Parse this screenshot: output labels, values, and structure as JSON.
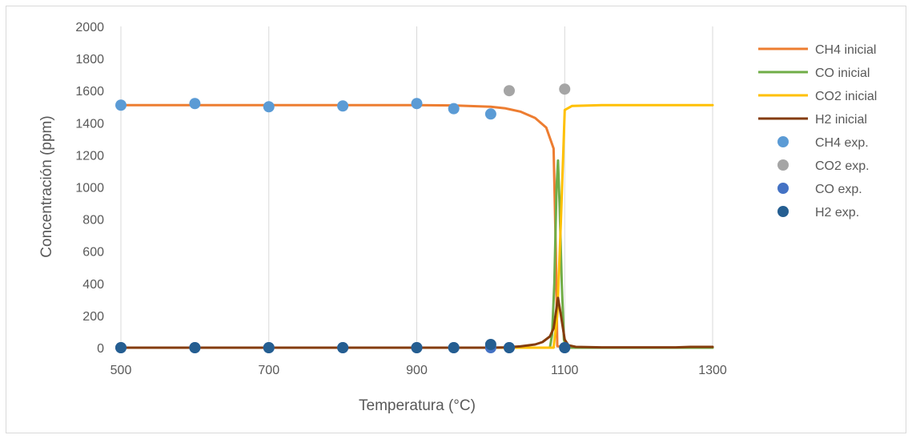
{
  "chart_data": {
    "type": "scatter",
    "xlabel": "Temperatura (°C)",
    "ylabel": "Concentración (ppm)",
    "xlim": [
      500,
      1300
    ],
    "ylim": [
      0,
      2000
    ],
    "x_ticks": [
      "500",
      "700",
      "900",
      "1100",
      "1300"
    ],
    "y_ticks": [
      "0",
      "200",
      "400",
      "600",
      "800",
      "1000",
      "1200",
      "1400",
      "1600",
      "1800",
      "2000"
    ],
    "grid": "vertical",
    "legend_position": "right",
    "series": [
      {
        "name": "CH4 inicial",
        "kind": "line",
        "color": "#ED7D31",
        "points": [
          [
            500,
            1510
          ],
          [
            700,
            1510
          ],
          [
            900,
            1510
          ],
          [
            950,
            1508
          ],
          [
            1000,
            1500
          ],
          [
            1020,
            1490
          ],
          [
            1040,
            1470
          ],
          [
            1060,
            1430
          ],
          [
            1075,
            1370
          ],
          [
            1085,
            1240
          ],
          [
            1088,
            600
          ],
          [
            1090,
            10
          ],
          [
            1100,
            0
          ],
          [
            1200,
            0
          ],
          [
            1300,
            0
          ]
        ]
      },
      {
        "name": "CO inicial",
        "kind": "line",
        "color": "#70AD47",
        "points": [
          [
            500,
            0
          ],
          [
            1080,
            0
          ],
          [
            1083,
            80
          ],
          [
            1086,
            400
          ],
          [
            1089,
            1000
          ],
          [
            1091,
            1165
          ],
          [
            1093,
            900
          ],
          [
            1096,
            400
          ],
          [
            1099,
            50
          ],
          [
            1102,
            5
          ],
          [
            1110,
            0
          ],
          [
            1300,
            0
          ]
        ]
      },
      {
        "name": "CO2 inicial",
        "kind": "line",
        "color": "#FFC000",
        "points": [
          [
            500,
            0
          ],
          [
            1085,
            0
          ],
          [
            1090,
            200
          ],
          [
            1095,
            800
          ],
          [
            1100,
            1480
          ],
          [
            1110,
            1505
          ],
          [
            1150,
            1510
          ],
          [
            1300,
            1510
          ]
        ]
      },
      {
        "name": "H2 inicial",
        "kind": "line",
        "color": "#843C0C",
        "points": [
          [
            500,
            0
          ],
          [
            1000,
            0
          ],
          [
            1020,
            2
          ],
          [
            1040,
            8
          ],
          [
            1060,
            20
          ],
          [
            1070,
            35
          ],
          [
            1080,
            70
          ],
          [
            1085,
            120
          ],
          [
            1091,
            310
          ],
          [
            1095,
            200
          ],
          [
            1100,
            50
          ],
          [
            1105,
            15
          ],
          [
            1115,
            5
          ],
          [
            1150,
            2
          ],
          [
            1250,
            2
          ],
          [
            1270,
            5
          ],
          [
            1300,
            5
          ]
        ]
      },
      {
        "name": "CH4 exp.",
        "kind": "marker",
        "color": "#5B9BD5",
        "points": [
          [
            500,
            1510
          ],
          [
            600,
            1520
          ],
          [
            700,
            1500
          ],
          [
            800,
            1505
          ],
          [
            900,
            1520
          ],
          [
            950,
            1488
          ],
          [
            1000,
            1455
          ]
        ]
      },
      {
        "name": "CO2 exp.",
        "kind": "marker",
        "color": "#A5A5A5",
        "points": [
          [
            1025,
            1600
          ],
          [
            1100,
            1610
          ]
        ]
      },
      {
        "name": "CO exp.",
        "kind": "marker",
        "color": "#4472C4",
        "points": [
          [
            500,
            0
          ],
          [
            600,
            0
          ],
          [
            700,
            0
          ],
          [
            800,
            0
          ],
          [
            900,
            0
          ],
          [
            950,
            0
          ],
          [
            1000,
            0
          ],
          [
            1025,
            0
          ],
          [
            1100,
            0
          ]
        ]
      },
      {
        "name": "H2 exp.",
        "kind": "marker",
        "color": "#255E91",
        "points": [
          [
            500,
            0
          ],
          [
            600,
            0
          ],
          [
            700,
            0
          ],
          [
            800,
            0
          ],
          [
            900,
            0
          ],
          [
            950,
            0
          ],
          [
            1000,
            20
          ],
          [
            1025,
            0
          ],
          [
            1100,
            0
          ]
        ]
      }
    ]
  }
}
